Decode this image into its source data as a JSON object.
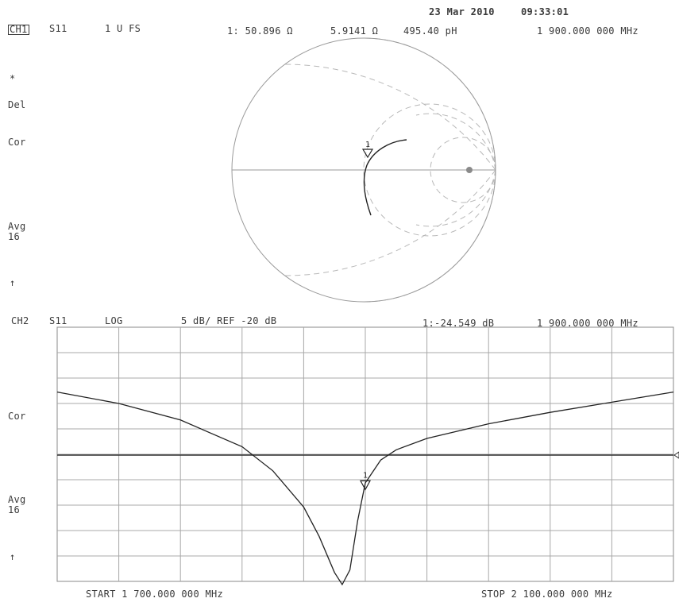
{
  "header": {
    "date": "23 Mar 2010",
    "time": "09:33:01"
  },
  "ch1": {
    "channel": "CH1",
    "param": "S11",
    "format": "1 U FS",
    "marker_readout": [
      "1: 50.896 Ω",
      "5.9141 Ω",
      "495.40 pH"
    ],
    "marker_freq": "1 900.000 000 MHz",
    "side_labels": {
      "star": "*",
      "del": "Del",
      "cor": "Cor",
      "avg": "Avg",
      "avg_n": "16",
      "arrow": "↑"
    },
    "marker_label": "1"
  },
  "ch2": {
    "channel": "CH2",
    "param": "S11",
    "format": "LOG",
    "scale": "5 dB/ REF -20 dB",
    "marker_readout": "1:-24.549 dB",
    "marker_freq": "1 900.000 000 MHz",
    "side_labels": {
      "cor": "Cor",
      "avg": "Avg",
      "avg_n": "16",
      "arrow": "↑"
    },
    "start": "START 1 700.000 000 MHz",
    "stop": "STOP 2 100.000 000 MHz",
    "marker_label": "1"
  },
  "chart_data": [
    {
      "type": "line",
      "chart": "smith",
      "marker_1": {
        "freq_mhz": 1900,
        "r_ohm": 50.896,
        "x_ohm": 5.9141,
        "l_ph": 495.4
      }
    },
    {
      "type": "line",
      "x_start_mhz": 1700,
      "x_stop_mhz": 2100,
      "y_per_div_db": 5,
      "ref_db": -20,
      "ylim": [
        -40,
        0
      ],
      "grid": true,
      "x": [
        1700,
        1740,
        1780,
        1820,
        1840,
        1860,
        1870,
        1880,
        1885,
        1890,
        1895,
        1900,
        1910,
        1920,
        1940,
        1980,
        2020,
        2060,
        2100
      ],
      "values": [
        -10.2,
        -12.0,
        -14.6,
        -18.8,
        -22.6,
        -28.3,
        -32.9,
        -38.6,
        -40.5,
        -38.2,
        -30.5,
        -24.5,
        -20.9,
        -19.3,
        -17.5,
        -15.2,
        -13.4,
        -11.8,
        -10.2
      ],
      "marker_1": {
        "freq_mhz": 1900,
        "value_db": -24.549
      }
    }
  ]
}
